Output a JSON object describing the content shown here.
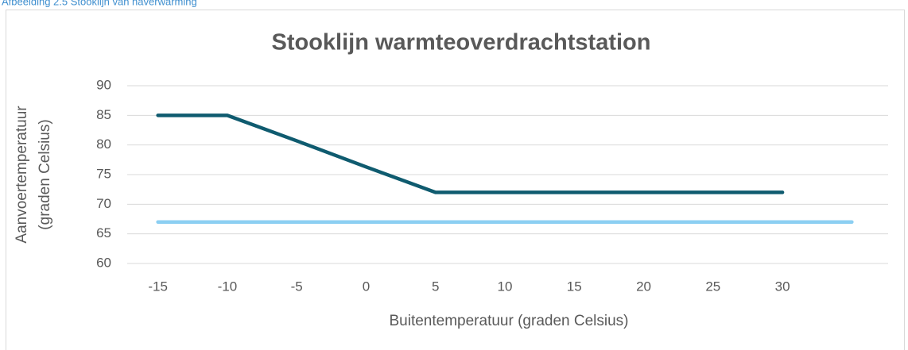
{
  "caption": "Afbeelding 2.5 Stooklijn van naverwarming",
  "chart_data": {
    "type": "line",
    "title": "Stooklijn warmteoverdrachtstation",
    "xlabel": "Buitentemperatuur (graden Celsius)",
    "ylabel": [
      "Aanvoertemperatuur",
      "(graden Celsius)"
    ],
    "categories": [
      -15,
      -10,
      -5,
      0,
      5,
      10,
      15,
      20,
      25,
      30,
      null
    ],
    "series": [
      {
        "color": "#0f5b6f",
        "values": [
          85,
          85,
          80.7,
          76.3,
          72,
          72,
          72,
          72,
          72,
          72,
          null
        ]
      },
      {
        "color": "#8ccff2",
        "values": [
          67,
          67,
          67,
          67,
          67,
          67,
          67,
          67,
          67,
          67,
          67
        ]
      }
    ],
    "ylim": [
      60,
      90
    ],
    "yticks": [
      60,
      65,
      70,
      75,
      80,
      85,
      90
    ],
    "grid": true
  }
}
